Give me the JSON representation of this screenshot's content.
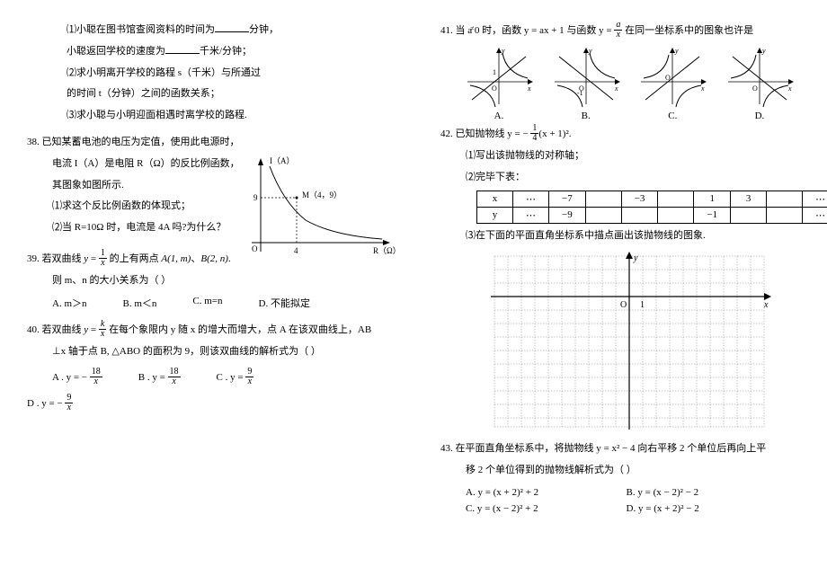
{
  "left": {
    "p37": {
      "l1a": "⑴小聪在图书馆查阅资料的时间为",
      "l1b": "分钟，",
      "l2a": "小聪返回学校的速度为",
      "l2b": "千米/分钟；",
      "l3": "⑵求小明离开学校的路程 s（千米）与所通过",
      "l4": "的时间 t（分钟）之间的函数关系；",
      "l5": "⑶求小聪与小明迎面相遇时离学校的路程."
    },
    "p38": {
      "head": "38. 已知某蓄电池的电压为定值，使用此电源时，",
      "l2": "电流 I（A）是电阻 R（Ω）的反比例函数，",
      "l3": "其图象如图所示.",
      "l4": "⑴求这个反比例函数的体现式；",
      "l5": "⑵当 R=10Ω 时，电流是 4A 吗?为什么？",
      "graph": {
        "ylabel": "I（A）",
        "xlabel": "R（Ω）",
        "point": "M（4，9）",
        "px": "4",
        "py": "9",
        "origin": "O"
      }
    },
    "p39": {
      "head_a": "39. 若双曲线 ",
      "head_b": " 的上有两点 ",
      "head_c": "、",
      "head_d": ".",
      "pA": "A(1, m)",
      "pB": "B(2, n)",
      "l2": "则 m、n 的大小关系为（  ）",
      "optA": "A. m＞n",
      "optB": "B. m＜n",
      "optC": "C. m=n",
      "optD": "D. 不能拟定"
    },
    "p40": {
      "head_a": "40. 若双曲线 ",
      "head_b": " 在每个象限内 y 随 x 的增大而增大，点 A 在该双曲线上，AB",
      "l2": "⊥x 轴于点 B, △ABO 的面积为 9，则该双曲线的解析式为（  ）",
      "optA_a": "A .   y = − ",
      "optB_a": "B .   y = ",
      "optC_a": "C .   y = ",
      "optD_a": "D .   y = − "
    }
  },
  "right": {
    "p41": {
      "head_a": "41. 当 a",
      "head_neq": "≠",
      "head_b": " 0 时，函数 y = ax + 1 与函数 y = ",
      "head_c": " 在同一坐标系中的图象也许是",
      "gl": [
        "A.",
        "B.",
        "C.",
        "D."
      ]
    },
    "p42": {
      "head_a": "42. 已知抛物线 y = − ",
      "head_b": "(x + 1)².",
      "l1": "⑴写出该抛物线的对称轴；",
      "l2": "⑵完毕下表：",
      "table": {
        "r1": [
          "x",
          "⋯",
          "−7",
          "",
          "−3",
          "",
          "1",
          "3",
          "",
          "⋯"
        ],
        "r2": [
          "y",
          "⋯",
          "−9",
          "",
          "",
          "",
          "−1",
          "",
          "",
          "⋯"
        ]
      },
      "l3": "⑶在下面的平面直角坐标系中描点画出该抛物线的图象.",
      "grid": {
        "ylabel": "y",
        "xlabel": "x",
        "origin": "O",
        "one": "1"
      }
    },
    "p43": {
      "head": "43. 在平面直角坐标系中，将抛物线 y = x² − 4 向右平移 2 个单位后再向上平",
      "l2": "移 2 个单位得到的抛物线解析式为（  ）",
      "optA": "A.  y = (x + 2)² + 2",
      "optB": "B.  y = (x − 2)² − 2",
      "optC": "C.  y = (x − 2)² + 2",
      "optD": "D.  y = (x + 2)² − 2"
    }
  },
  "style": {
    "text_color": "#000000",
    "bg": "#ffffff",
    "grid_color": "#808080",
    "font_size": 11
  }
}
